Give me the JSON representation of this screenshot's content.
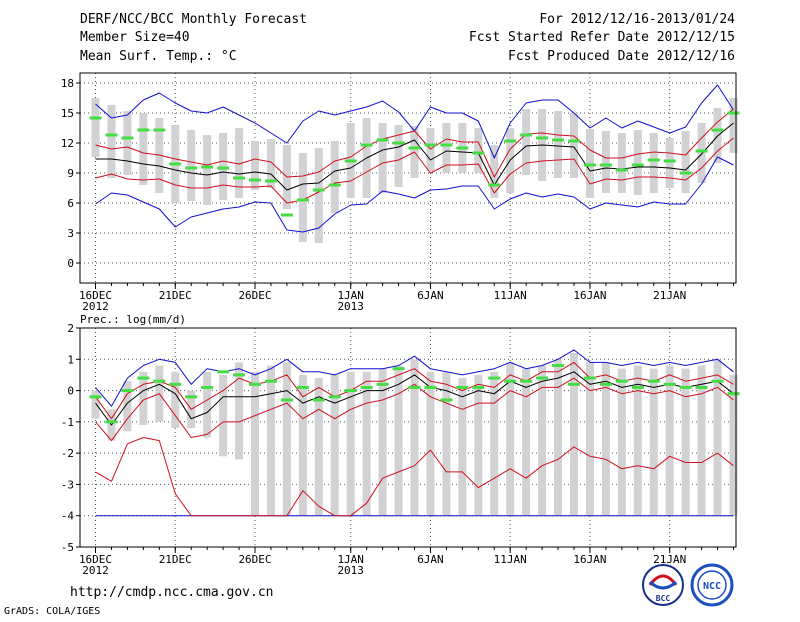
{
  "header": {
    "left_line1": "DERF/NCC/BCC Monthly Forecast",
    "left_line2": "Member Size=40",
    "left_line3": "Mean Surf. Temp.: °C",
    "right_line1": "For 2012/12/16-2013/01/24",
    "right_line2": "Fcst Started Refer Date 2012/12/15",
    "right_line3": "Fcst Produced Date 2012/12/16"
  },
  "footer": {
    "url": "http://cmdp.ncc.cma.gov.cn",
    "credit": "GrADS: COLA/IGES",
    "logo_bcc_text": "BCC",
    "logo_ncc_text": "NCC"
  },
  "colors": {
    "max_min": "#1010d0",
    "pct": "#d01020",
    "mean": "#000000",
    "box": "#d2d2d4",
    "obs": "#44dd44"
  },
  "chart_data": [
    {
      "type": "box",
      "title": "Mean Surf. Temp.: °C",
      "xlabel": "",
      "ylabel": "",
      "ylim": [
        -2,
        19
      ],
      "yticks": [
        0,
        3,
        6,
        9,
        12,
        15,
        18
      ],
      "x_tick_labels": [
        {
          "day": 0,
          "label": "16DEC",
          "sub": "2012"
        },
        {
          "day": 5,
          "label": "21DEC",
          "sub": ""
        },
        {
          "day": 10,
          "label": "26DEC",
          "sub": ""
        },
        {
          "day": 16,
          "label": "1JAN",
          "sub": "2013"
        },
        {
          "day": 21,
          "label": "6JAN",
          "sub": ""
        },
        {
          "day": 26,
          "label": "11JAN",
          "sub": ""
        },
        {
          "day": 31,
          "label": "16JAN",
          "sub": ""
        },
        {
          "day": 36,
          "label": "21JAN",
          "sub": ""
        }
      ],
      "days": 40,
      "series": [
        {
          "name": "max",
          "values": [
            15.9,
            14.5,
            14.8,
            16.3,
            17.0,
            16.0,
            15.2,
            15.0,
            15.6,
            14.8,
            14.0,
            13.0,
            12.0,
            14.2,
            15.2,
            14.8,
            15.2,
            15.6,
            16.2,
            15.1,
            13.2,
            15.6,
            15.0,
            15.0,
            14.2,
            10.5,
            14.0,
            16.0,
            16.3,
            16.3,
            15.0,
            13.5,
            14.5,
            13.5,
            14.2,
            13.6,
            13.0,
            13.6,
            16.0,
            17.8,
            15.3
          ]
        },
        {
          "name": "p90",
          "values": [
            11.8,
            11.4,
            11.6,
            11.0,
            10.8,
            10.4,
            10.1,
            9.8,
            10.2,
            9.9,
            10.4,
            10.1,
            8.6,
            8.7,
            9.1,
            10.2,
            10.6,
            11.7,
            12.4,
            12.8,
            13.2,
            11.4,
            12.4,
            12.1,
            12.1,
            8.6,
            11.4,
            12.9,
            13.0,
            12.8,
            12.7,
            11.3,
            10.5,
            10.5,
            10.9,
            11.1,
            11.0,
            10.8,
            12.5,
            14.1,
            15.4
          ]
        },
        {
          "name": "mean",
          "values": [
            10.4,
            10.4,
            10.2,
            9.9,
            9.7,
            9.3,
            9.0,
            8.8,
            9.1,
            8.9,
            9.1,
            8.9,
            7.3,
            7.9,
            8.0,
            9.2,
            9.5,
            10.5,
            11.3,
            11.6,
            12.3,
            10.3,
            11.2,
            11.1,
            11.0,
            7.8,
            10.3,
            11.7,
            11.8,
            11.7,
            11.6,
            9.2,
            9.5,
            9.4,
            9.6,
            9.6,
            9.5,
            9.3,
            10.9,
            12.7,
            14.0
          ]
        },
        {
          "name": "p10",
          "values": [
            8.5,
            8.9,
            8.4,
            8.3,
            8.4,
            7.8,
            7.5,
            7.5,
            7.8,
            7.6,
            7.6,
            7.7,
            6.0,
            6.3,
            7.1,
            8.0,
            8.2,
            9.1,
            10.0,
            10.3,
            11.1,
            9.0,
            9.8,
            9.8,
            9.9,
            7.0,
            8.9,
            10.0,
            10.2,
            10.3,
            10.4,
            7.9,
            8.4,
            8.3,
            8.6,
            8.6,
            8.5,
            8.3,
            9.5,
            11.2,
            12.5
          ]
        },
        {
          "name": "min",
          "values": [
            5.9,
            7.0,
            6.8,
            6.1,
            5.4,
            3.6,
            4.6,
            5.0,
            5.4,
            5.6,
            6.1,
            6.0,
            3.3,
            3.1,
            3.5,
            4.9,
            5.8,
            5.9,
            7.2,
            6.9,
            6.5,
            7.3,
            7.4,
            7.7,
            7.7,
            5.4,
            6.4,
            7.0,
            6.6,
            6.9,
            6.6,
            5.4,
            6.0,
            5.8,
            5.6,
            6.1,
            5.9,
            5.9,
            7.9,
            10.6,
            9.8
          ]
        },
        {
          "name": "box_high",
          "values": [
            16.5,
            15.8,
            15.2,
            15.0,
            14.5,
            13.8,
            13.3,
            12.8,
            13.0,
            13.5,
            12.2,
            12.4,
            11.8,
            11.0,
            11.5,
            12.2,
            14.0,
            14.5,
            14.0,
            13.8,
            13.7,
            13.5,
            14.0,
            14.0,
            13.5,
            11.8,
            13.5,
            15.4,
            15.4,
            15.2,
            15.0,
            13.4,
            13.2,
            13.0,
            13.3,
            13.0,
            12.5,
            13.2,
            14.0,
            15.5,
            16.5
          ]
        },
        {
          "name": "box_low",
          "values": [
            10.6,
            8.5,
            8.8,
            7.8,
            7.0,
            6.0,
            6.2,
            5.8,
            6.3,
            6.5,
            7.3,
            7.5,
            5.4,
            2.1,
            2.0,
            5.0,
            6.5,
            6.5,
            7.0,
            7.6,
            8.5,
            9.2,
            9.0,
            9.0,
            9.0,
            6.5,
            7.0,
            8.8,
            8.2,
            8.5,
            8.5,
            6.5,
            7.0,
            7.0,
            6.8,
            7.0,
            7.5,
            7.0,
            8.0,
            10.0,
            11.0
          ]
        },
        {
          "name": "observed",
          "values": [
            14.5,
            12.8,
            12.5,
            13.3,
            13.3,
            9.9,
            9.5,
            9.6,
            9.5,
            8.5,
            8.3,
            8.2,
            4.8,
            6.3,
            7.3,
            7.8,
            10.2,
            11.8,
            12.3,
            12.0,
            11.5,
            11.8,
            11.8,
            11.5,
            11.0,
            7.8,
            12.2,
            12.8,
            12.5,
            12.3,
            12.2,
            9.8,
            9.8,
            9.3,
            9.8,
            10.3,
            10.2,
            9.0,
            11.2,
            13.3,
            15.0
          ]
        }
      ]
    },
    {
      "type": "box",
      "title": "Prec.: log(mm/d)",
      "xlabel": "",
      "ylabel": "",
      "ylim": [
        -5,
        2
      ],
      "yticks": [
        -5,
        -4,
        -3,
        -2,
        -1,
        0,
        1,
        2
      ],
      "x_tick_labels": [
        {
          "day": 0,
          "label": "16DEC",
          "sub": "2012"
        },
        {
          "day": 5,
          "label": "21DEC",
          "sub": ""
        },
        {
          "day": 10,
          "label": "26DEC",
          "sub": ""
        },
        {
          "day": 16,
          "label": "1JAN",
          "sub": "2013"
        },
        {
          "day": 21,
          "label": "6JAN",
          "sub": ""
        },
        {
          "day": 26,
          "label": "11JAN",
          "sub": ""
        },
        {
          "day": 31,
          "label": "16JAN",
          "sub": ""
        },
        {
          "day": 36,
          "label": "21JAN",
          "sub": ""
        }
      ],
      "days": 40,
      "series": [
        {
          "name": "max",
          "values": [
            0.1,
            -0.5,
            0.4,
            0.8,
            1.0,
            0.9,
            0.2,
            0.7,
            0.6,
            0.7,
            0.5,
            0.7,
            1.0,
            0.6,
            0.6,
            0.5,
            0.7,
            0.7,
            0.7,
            0.8,
            1.1,
            0.7,
            0.6,
            0.5,
            0.6,
            0.7,
            0.9,
            0.7,
            0.8,
            1.0,
            1.3,
            0.9,
            0.9,
            0.8,
            0.9,
            0.8,
            0.9,
            0.8,
            0.9,
            1.0,
            0.6
          ]
        },
        {
          "name": "p90",
          "values": [
            -0.2,
            -0.9,
            -0.1,
            0.2,
            0.3,
            0.1,
            -0.6,
            -0.3,
            0.0,
            0.4,
            0.2,
            0.3,
            0.5,
            -0.2,
            0.1,
            -0.2,
            0.0,
            0.3,
            0.3,
            0.5,
            0.7,
            0.3,
            0.2,
            0.0,
            0.2,
            0.1,
            0.5,
            0.3,
            0.6,
            0.6,
            0.9,
            0.4,
            0.5,
            0.3,
            0.4,
            0.3,
            0.5,
            0.3,
            0.4,
            0.5,
            0.2
          ]
        },
        {
          "name": "mean",
          "values": [
            -0.4,
            -1.1,
            -0.4,
            0.0,
            0.2,
            -0.1,
            -0.9,
            -0.7,
            -0.2,
            -0.2,
            -0.2,
            -0.1,
            0.0,
            -0.4,
            -0.2,
            -0.4,
            -0.2,
            0.0,
            0.0,
            0.2,
            0.5,
            0.1,
            0.0,
            -0.2,
            0.0,
            -0.1,
            0.3,
            0.1,
            0.3,
            0.4,
            0.6,
            0.2,
            0.3,
            0.1,
            0.2,
            0.1,
            0.2,
            0.1,
            0.2,
            0.3,
            -0.1
          ]
        },
        {
          "name": "p10",
          "values": [
            -1.0,
            -1.6,
            -0.9,
            -0.3,
            -0.1,
            -0.8,
            -1.5,
            -1.4,
            -1.0,
            -1.0,
            -0.8,
            -0.6,
            -0.4,
            -0.9,
            -0.6,
            -0.9,
            -0.6,
            -0.4,
            -0.3,
            -0.1,
            0.2,
            -0.2,
            -0.4,
            -0.6,
            -0.4,
            -0.4,
            0.0,
            -0.2,
            0.1,
            0.1,
            0.4,
            0.0,
            0.1,
            -0.1,
            0.0,
            -0.1,
            0.0,
            -0.2,
            -0.1,
            0.1,
            -0.3
          ]
        },
        {
          "name": "p_low",
          "values": [
            -2.6,
            -2.9,
            -1.7,
            -1.5,
            -1.6,
            -3.3,
            -4.0,
            -4.0,
            -4.0,
            -4.0,
            -4.0,
            -4.0,
            -4.0,
            -3.2,
            -3.7,
            -4.0,
            -4.0,
            -3.6,
            -2.8,
            -2.6,
            -2.4,
            -1.9,
            -2.6,
            -2.6,
            -3.1,
            -2.8,
            -2.5,
            -2.8,
            -2.4,
            -2.2,
            -1.8,
            -2.1,
            -2.2,
            -2.5,
            -2.4,
            -2.5,
            -2.1,
            -2.3,
            -2.3,
            -2.0,
            -2.4
          ]
        },
        {
          "name": "min",
          "values": [
            -4.0,
            -4.0,
            -4.0,
            -4.0,
            -4.0,
            -4.0,
            -4.0,
            -4.0,
            -4.0,
            -4.0,
            -4.0,
            -4.0,
            -4.0,
            -4.0,
            -4.0,
            -4.0,
            -4.0,
            -4.0,
            -4.0,
            -4.0,
            -4.0,
            -4.0,
            -4.0,
            -4.0,
            -4.0,
            -4.0,
            -4.0,
            -4.0,
            -4.0,
            -4.0,
            -4.0,
            -4.0,
            -4.0,
            -4.0,
            -4.0,
            -4.0,
            -4.0,
            -4.0,
            -4.0,
            -4.0,
            -4.0
          ]
        },
        {
          "name": "box_high",
          "values": [
            0.0,
            -0.6,
            0.3,
            0.6,
            0.8,
            0.6,
            0.0,
            0.6,
            0.5,
            0.9,
            0.6,
            0.8,
            0.9,
            0.5,
            0.4,
            0.5,
            0.6,
            0.6,
            0.7,
            0.8,
            1.0,
            0.6,
            0.6,
            0.4,
            0.5,
            0.6,
            0.9,
            0.7,
            0.8,
            1.0,
            1.2,
            0.9,
            0.9,
            0.7,
            0.8,
            0.7,
            0.8,
            0.7,
            0.8,
            1.0,
            0.5
          ]
        },
        {
          "name": "box_low",
          "values": [
            -0.9,
            -1.6,
            -1.3,
            -1.1,
            -1.0,
            -1.2,
            -1.2,
            -1.5,
            -2.1,
            -2.2,
            -4.0,
            -4.0,
            -4.0,
            -4.0,
            -4.0,
            -4.0,
            -4.0,
            -4.0,
            -4.0,
            -4.0,
            -4.0,
            -4.0,
            -4.0,
            -4.0,
            -4.0,
            -4.0,
            -4.0,
            -4.0,
            -4.0,
            -4.0,
            -4.0,
            -4.0,
            -4.0,
            -4.0,
            -4.0,
            -4.0,
            -4.0,
            -4.0,
            -4.0,
            -4.0,
            -4.0
          ]
        },
        {
          "name": "observed",
          "values": [
            -0.2,
            -1.0,
            0.0,
            0.4,
            0.3,
            0.2,
            -0.2,
            0.1,
            0.6,
            0.5,
            0.2,
            0.3,
            -0.3,
            0.1,
            -0.3,
            -0.2,
            0.0,
            0.1,
            0.2,
            0.7,
            0.1,
            0.1,
            -0.3,
            0.1,
            0.1,
            0.4,
            0.3,
            0.3,
            0.4,
            0.8,
            0.2,
            0.4,
            0.2,
            0.3,
            0.1,
            0.3,
            0.2,
            0.1,
            0.1,
            0.3,
            -0.1
          ]
        }
      ]
    }
  ]
}
